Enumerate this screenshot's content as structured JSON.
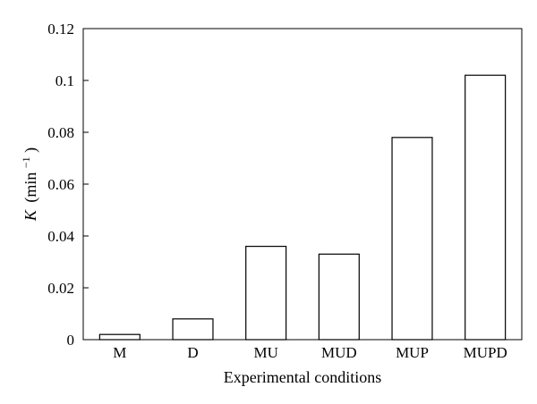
{
  "chart_data": {
    "type": "bar",
    "categories": [
      "M",
      "D",
      "MU",
      "MUD",
      "MUP",
      "MUPD"
    ],
    "values": [
      0.002,
      0.008,
      0.036,
      0.033,
      0.078,
      0.102
    ],
    "xlabel": "Experimental conditions",
    "ylabel": {
      "symbol": "K",
      "unit_prefix": "(min",
      "unit_exponent": "−1",
      "unit_suffix": ")"
    },
    "ylim": [
      0,
      0.12
    ],
    "yticks": [
      0,
      0.02,
      0.04,
      0.06,
      0.08,
      0.1,
      0.12
    ],
    "ytick_labels": [
      "0",
      "0.02",
      "0.04",
      "0.06",
      "0.08",
      "0.1",
      "0.12"
    ],
    "grid": false,
    "bar_fill": "#ffffff",
    "bar_stroke": "#000000"
  }
}
